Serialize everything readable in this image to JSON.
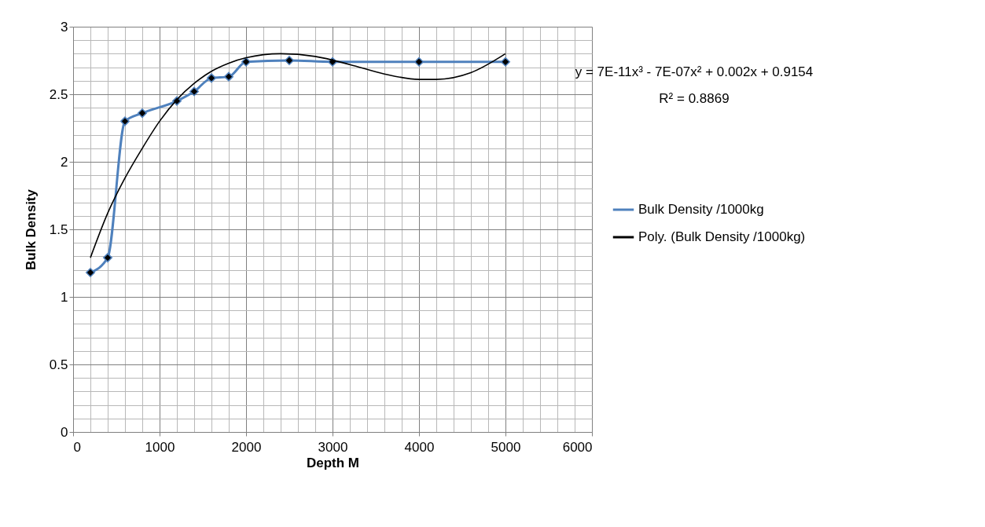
{
  "chart_data": {
    "type": "line",
    "xlabel": "Depth M",
    "ylabel": "Bulk Density",
    "xlim": [
      0,
      6000
    ],
    "xticks": [
      0,
      1000,
      2000,
      3000,
      4000,
      5000,
      6000
    ],
    "ylim": [
      0,
      3
    ],
    "yticks": [
      0,
      0.5,
      1,
      1.5,
      2,
      2.5,
      3
    ],
    "grid": true,
    "legend": "right",
    "annotations": [
      "y = 7E-11x³ - 7E-07x² + 0.002x + 0.9154",
      "R² = 0.8869"
    ],
    "series": [
      {
        "name": "Bulk Density /1000kg",
        "color": "#4f81bd",
        "marker": "diamond",
        "x": [
          200,
          400,
          600,
          800,
          1200,
          1400,
          1600,
          1800,
          2000,
          2500,
          3000,
          4000,
          5000
        ],
        "values": [
          1.18,
          1.29,
          2.3,
          2.36,
          2.45,
          2.52,
          2.62,
          2.63,
          2.74,
          2.75,
          2.74,
          2.74,
          2.74
        ]
      },
      {
        "name": "Poly. (Bulk Density /1000kg)",
        "color": "#000000",
        "marker": "none",
        "x": [
          200,
          400,
          600,
          800,
          1000,
          1200,
          1400,
          1600,
          1800,
          2000,
          2400,
          2800,
          3200,
          3600,
          4000,
          4200,
          4600,
          5000
        ],
        "values": [
          1.29,
          1.62,
          1.88,
          2.1,
          2.3,
          2.46,
          2.58,
          2.67,
          2.73,
          2.77,
          2.8,
          2.78,
          2.72,
          2.65,
          2.61,
          2.61,
          2.66,
          2.8
        ]
      }
    ]
  }
}
